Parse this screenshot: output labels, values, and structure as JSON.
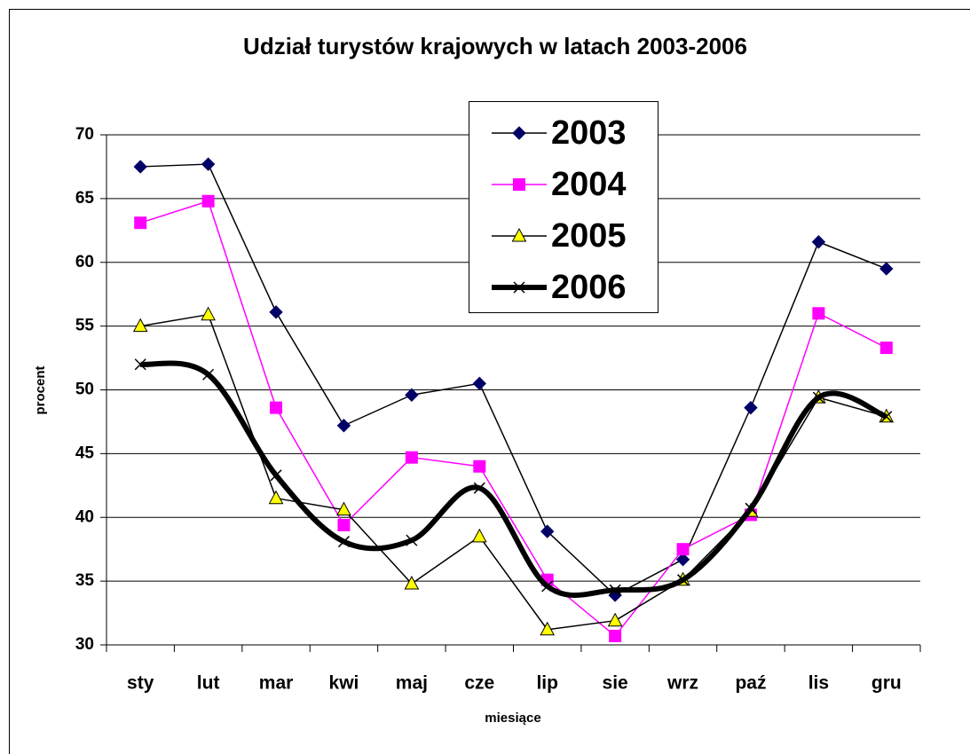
{
  "chart_data": {
    "type": "line",
    "title": "Udział turystów krajowych w latach 2003-2006",
    "xlabel": "miesiące",
    "ylabel": "procent",
    "categories": [
      "sty",
      "lut",
      "mar",
      "kwi",
      "maj",
      "cze",
      "lip",
      "sie",
      "wrz",
      "paź",
      "lis",
      "gru"
    ],
    "series": [
      {
        "name": "2003",
        "color": "#000000",
        "marker": "diamond",
        "marker_color": "#000066",
        "line_width": 1.5,
        "smooth": false,
        "values": [
          67.5,
          67.7,
          56.1,
          47.2,
          49.6,
          50.5,
          38.9,
          33.9,
          36.7,
          48.6,
          61.6,
          59.5
        ]
      },
      {
        "name": "2004",
        "color": "#ff00ff",
        "marker": "square",
        "marker_color": "#ff00ff",
        "line_width": 1.5,
        "smooth": false,
        "values": [
          63.1,
          64.8,
          48.6,
          39.4,
          44.7,
          44.0,
          35.1,
          30.7,
          37.5,
          40.2,
          56.0,
          53.3
        ]
      },
      {
        "name": "2005",
        "color": "#000000",
        "marker": "triangle",
        "marker_color": "#ffff00",
        "line_width": 1.5,
        "smooth": false,
        "values": [
          55.0,
          55.9,
          41.5,
          40.6,
          34.8,
          38.5,
          31.2,
          31.9,
          35.1,
          40.5,
          49.4,
          47.9
        ]
      },
      {
        "name": "2006",
        "color": "#000000",
        "marker": "x",
        "marker_color": "#000000",
        "line_width": 6,
        "smooth": true,
        "values": [
          52.0,
          51.2,
          43.3,
          38.1,
          38.2,
          42.3,
          34.6,
          34.3,
          35.1,
          40.7,
          49.4,
          47.9
        ]
      }
    ],
    "ylim": [
      30,
      70
    ],
    "yticks": [
      30,
      35,
      40,
      45,
      50,
      55,
      60,
      65,
      70
    ],
    "grid": true,
    "legend": "top"
  }
}
